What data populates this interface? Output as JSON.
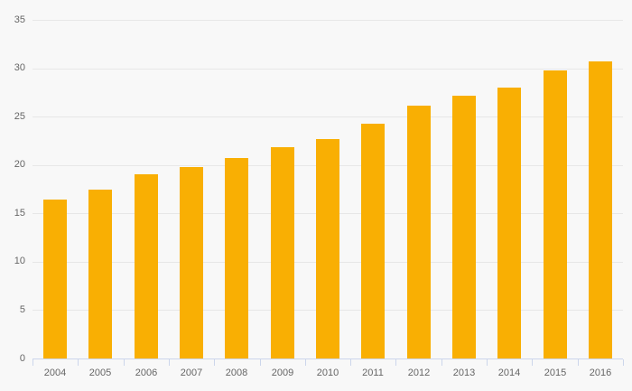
{
  "chart_data": {
    "type": "bar",
    "categories": [
      "2004",
      "2005",
      "2006",
      "2007",
      "2008",
      "2009",
      "2010",
      "2011",
      "2012",
      "2013",
      "2014",
      "2015",
      "2016"
    ],
    "values": [
      16.4,
      17.5,
      19.0,
      19.8,
      20.7,
      21.8,
      22.7,
      24.3,
      26.1,
      27.2,
      28.0,
      29.8,
      30.7
    ],
    "title": "",
    "xlabel": "",
    "ylabel": "",
    "ylim": [
      0,
      35
    ],
    "yticks": [
      0,
      5,
      10,
      15,
      20,
      25,
      30,
      35
    ],
    "grid": true,
    "legend": false,
    "colors": {
      "bar": "#f9af03",
      "background": "#f8f8f8",
      "gridline": "#e7e7e7",
      "axis": "#ccd6eb",
      "label": "#666666"
    }
  }
}
